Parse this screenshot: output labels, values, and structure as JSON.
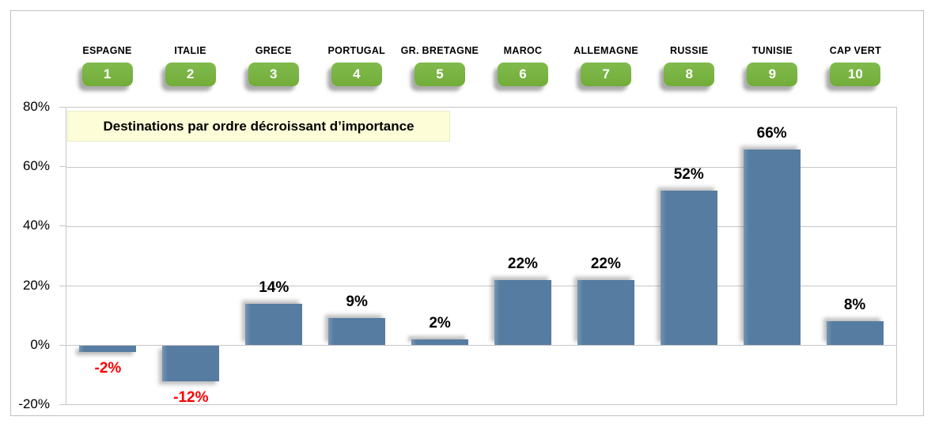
{
  "chart_data": {
    "type": "bar",
    "title": "Destinations par ordre décroissant d’importance",
    "categories": [
      "ESPAGNE",
      "ITALIE",
      "GRECE",
      "PORTUGAL",
      "GR. BRETAGNE",
      "MAROC",
      "ALLEMAGNE",
      "RUSSIE",
      "TUNISIE",
      "CAP VERT"
    ],
    "ranks": [
      "1",
      "2",
      "3",
      "4",
      "5",
      "6",
      "7",
      "8",
      "9",
      "10"
    ],
    "values": [
      -2,
      -12,
      14,
      9,
      2,
      22,
      22,
      52,
      66,
      8
    ],
    "value_labels": [
      "-2%",
      "-12%",
      "14%",
      "9%",
      "2%",
      "22%",
      "22%",
      "52%",
      "66%",
      "8%"
    ],
    "xlabel": "",
    "ylabel": "",
    "ylim": [
      -20,
      80
    ],
    "ytick_step": 20,
    "ytick_labels": [
      "80%",
      "60%",
      "40%",
      "20%",
      "0%",
      "-20%"
    ],
    "grid": true,
    "legend_position": "none",
    "colors": {
      "bar": "#567CA1",
      "badge_green": "#74AE3B",
      "positive_label": "#000000",
      "negative_label": "#FF0000",
      "title_background": "#FDFDD8",
      "gridline": "#C6C6C6"
    }
  }
}
